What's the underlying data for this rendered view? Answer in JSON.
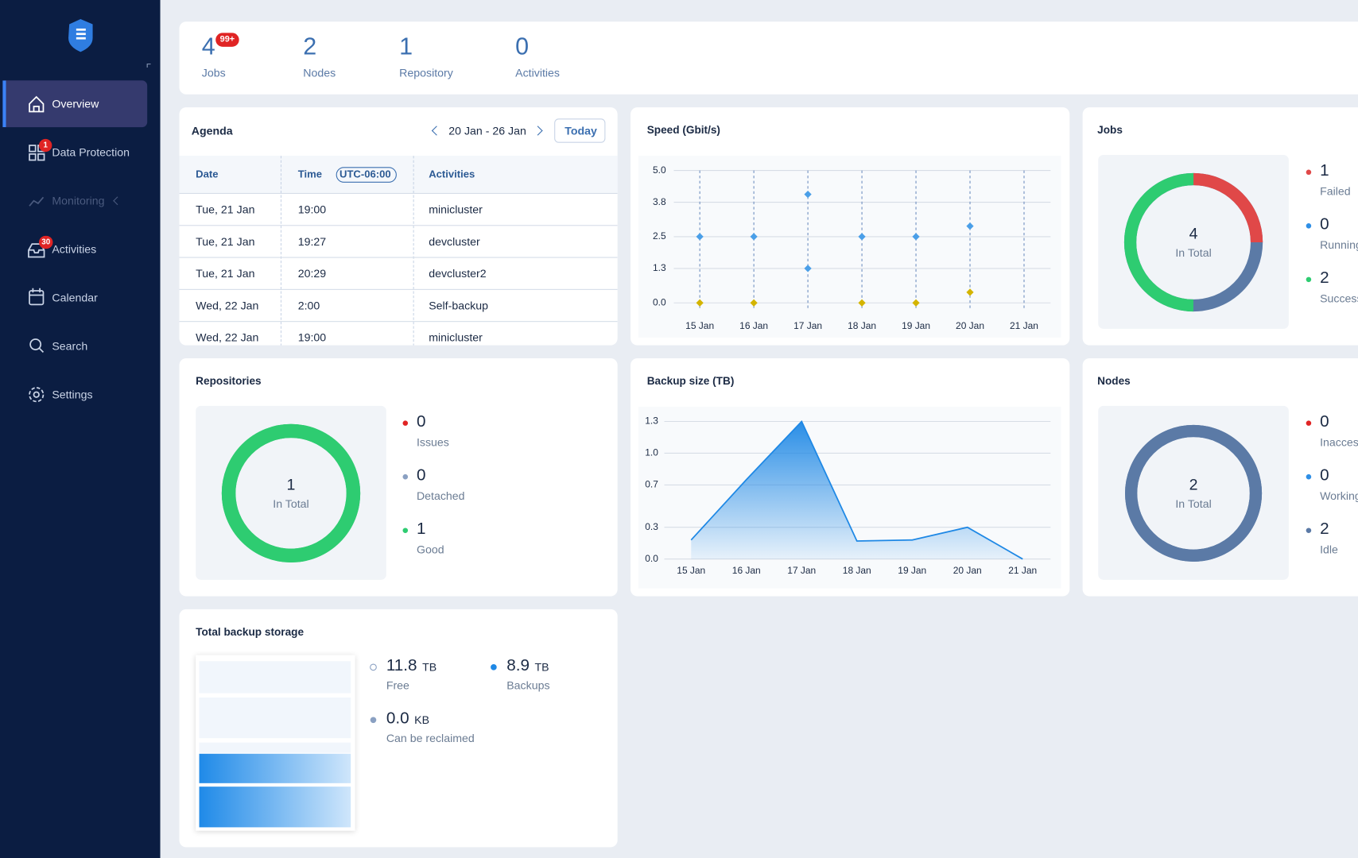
{
  "sidebar": {
    "items": [
      {
        "label": "Overview"
      },
      {
        "label": "Data Protection",
        "badge": 1
      },
      {
        "label": "Monitoring"
      },
      {
        "label": "Activities",
        "badge": 30
      },
      {
        "label": "Calendar"
      },
      {
        "label": "Search"
      },
      {
        "label": "Settings"
      }
    ]
  },
  "summary": [
    {
      "value": 4,
      "label": "Jobs",
      "badge": "99+"
    },
    {
      "value": 2,
      "label": "Nodes"
    },
    {
      "value": 1,
      "label": "Repository"
    },
    {
      "value": 0,
      "label": "Activities"
    }
  ],
  "agenda": {
    "title": "Agenda",
    "range": "20 Jan - 26 Jan",
    "today": "Today",
    "columns": [
      "Date",
      "Time",
      "Activities"
    ],
    "timezone": "UTC-06:00",
    "rows": [
      [
        "Tue, 21 Jan",
        "19:00",
        "minicluster"
      ],
      [
        "Tue, 21 Jan",
        "19:27",
        "devcluster"
      ],
      [
        "Tue, 21 Jan",
        "20:29",
        "devcluster2"
      ],
      [
        "Wed, 22 Jan",
        "2:00",
        "Self-backup"
      ],
      [
        "Wed, 22 Jan",
        "19:00",
        "minicluster"
      ]
    ]
  },
  "speed": {
    "type": "scatter",
    "title": "Speed (Gbit/s)",
    "categories": [
      "15 Jan",
      "16 Jan",
      "17 Jan",
      "18 Jan",
      "19 Jan",
      "20 Jan",
      "21 Jan"
    ],
    "series": [
      {
        "color": "#4a9fe8",
        "values": [
          2.5,
          2.5,
          4.1,
          2.5,
          2.5,
          2.9,
          null
        ]
      },
      {
        "color": "#4a9fe8",
        "values": [
          null,
          null,
          1.3,
          null,
          null,
          null,
          null
        ]
      },
      {
        "color": "#d4b400",
        "values": [
          0,
          0,
          null,
          0,
          0,
          0.4,
          null
        ]
      }
    ],
    "ylim": [
      0,
      5
    ],
    "yticks": [
      {
        "value": 5,
        "label": "5.0"
      },
      3.8,
      2.5,
      1.3,
      {
        "value": 0,
        "label": "0.0"
      }
    ],
    "grid": true
  },
  "backup_size": {
    "type": "area",
    "title": "Backup size (TB)",
    "categories": [
      "15 Jan",
      "16 Jan",
      "17 Jan",
      "18 Jan",
      "19 Jan",
      "20 Jan",
      "21 Jan"
    ],
    "values": [
      0.18,
      0.75,
      1.3,
      0.17,
      0.18,
      0.3,
      0
    ],
    "color": "#1e88e5",
    "ylim": [
      0,
      1.3
    ],
    "yticks": [
      1.3,
      {
        "value": 1,
        "label": "1.0"
      },
      0.7,
      0.3,
      {
        "value": 0,
        "label": "0.0"
      }
    ],
    "grid": true
  },
  "jobs": {
    "type": "donut",
    "title": "Jobs",
    "total": 4,
    "total_label": "In Total",
    "ring_color": "#5b7aa6",
    "categories": [
      "Failed",
      "Running",
      "Success"
    ],
    "values": [
      1,
      0,
      2
    ],
    "colors": [
      "#e04848",
      "#2f8fe6",
      "#2ecc71"
    ]
  },
  "repositories": {
    "type": "donut",
    "title": "Repositories",
    "total": 1,
    "total_label": "In Total",
    "ring_color": "#2ecc71",
    "categories": [
      "Issues",
      "Detached",
      "Good"
    ],
    "values": [
      0,
      0,
      1
    ],
    "colors": [
      "#e02424",
      "#8aa0c2",
      "#2ecc71"
    ]
  },
  "nodes": {
    "type": "donut",
    "title": "Nodes",
    "total": 2,
    "total_label": "In Total",
    "ring_color": "#5b7aa6",
    "categories": [
      "Inaccessible",
      "Working",
      "Idle"
    ],
    "values": [
      0,
      0,
      2
    ],
    "colors": [
      "#e02424",
      "#2f8fe6",
      "#5b7aa6"
    ]
  },
  "storage": {
    "title": "Total backup storage",
    "items": [
      {
        "value": "11.8",
        "unit": "TB",
        "label": "Free"
      },
      {
        "value": "8.9",
        "unit": "TB",
        "label": "Backups"
      },
      {
        "value": "0.0",
        "unit": "KB",
        "label": "Can be reclaimed"
      }
    ]
  }
}
